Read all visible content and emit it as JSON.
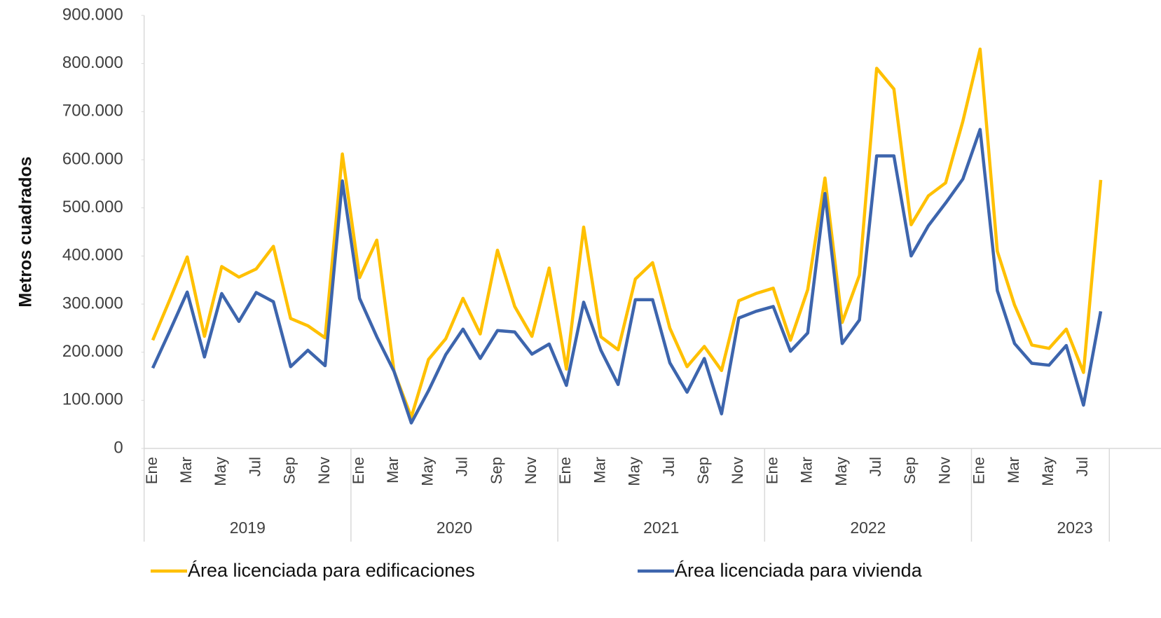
{
  "chart_data": {
    "type": "line",
    "y_label": "Metros cuadrados",
    "categories": [
      "Ene",
      null,
      "Mar",
      null,
      "May",
      null,
      "Jul",
      null,
      "Sep",
      null,
      "Nov",
      null,
      "Ene",
      null,
      "Mar",
      null,
      "May",
      null,
      "Jul",
      null,
      "Sep",
      null,
      "Nov",
      null,
      "Ene",
      null,
      "Mar",
      null,
      "May",
      null,
      "Jul",
      null,
      "Sep",
      null,
      "Nov",
      null,
      "Ene",
      null,
      "Mar",
      null,
      "May",
      null,
      "Jul",
      null,
      "Sep",
      null,
      "Nov",
      null,
      "Ene",
      null,
      "Mar",
      null,
      "May",
      null,
      "Jul",
      null
    ],
    "groups": [
      {
        "label": "2019",
        "span": 12
      },
      {
        "label": "2020",
        "span": 12
      },
      {
        "label": "2021",
        "span": 12
      },
      {
        "label": "2022",
        "span": 12
      },
      {
        "label": "2023",
        "span": 8
      }
    ],
    "series": [
      {
        "name": "Área licenciada para edificaciones",
        "color": "#FFC000",
        "values": [
          225000,
          310000,
          398000,
          233000,
          378000,
          356000,
          373000,
          420000,
          270000,
          255000,
          230000,
          612000,
          355000,
          433000,
          160000,
          65000,
          185000,
          228000,
          312000,
          238000,
          412000,
          295000,
          233000,
          375000,
          165000,
          460000,
          232000,
          205000,
          352000,
          386000,
          250000,
          170000,
          212000,
          162000,
          307000,
          322000,
          333000,
          225000,
          330000,
          562000,
          262000,
          360000,
          790000,
          747000,
          465000,
          525000,
          552000,
          680000,
          830000,
          410000,
          298000,
          215000,
          208000,
          248000,
          158000,
          558000
        ]
      },
      {
        "name": "Área licenciada para vivienda",
        "color": "#3D65AD",
        "values": [
          167000,
          245000,
          325000,
          190000,
          322000,
          264000,
          324000,
          305000,
          170000,
          204000,
          172000,
          556000,
          312000,
          232000,
          160000,
          53000,
          120000,
          195000,
          248000,
          187000,
          245000,
          242000,
          196000,
          217000,
          131000,
          304000,
          204000,
          133000,
          309000,
          309000,
          178000,
          117000,
          187000,
          72000,
          271000,
          285000,
          295000,
          202000,
          240000,
          530000,
          218000,
          267000,
          608000,
          608000,
          400000,
          463000,
          510000,
          560000,
          663000,
          328000,
          218000,
          177000,
          173000,
          214000,
          90000,
          285000
        ]
      }
    ],
    "ylim": [
      0,
      900000
    ],
    "yticks": [
      0,
      {
        "value": 100000,
        "label": "100.000"
      },
      {
        "value": 200000,
        "label": "200.000"
      },
      {
        "value": 300000,
        "label": "300.000"
      },
      {
        "value": 400000,
        "label": "400.000"
      },
      {
        "value": 500000,
        "label": "500.000"
      },
      {
        "value": 600000,
        "label": "600.000"
      },
      {
        "value": 700000,
        "label": "700.000"
      },
      {
        "value": 800000,
        "label": "800.000"
      },
      {
        "value": 900000,
        "label": "900.000"
      }
    ],
    "legend": "bottom"
  }
}
